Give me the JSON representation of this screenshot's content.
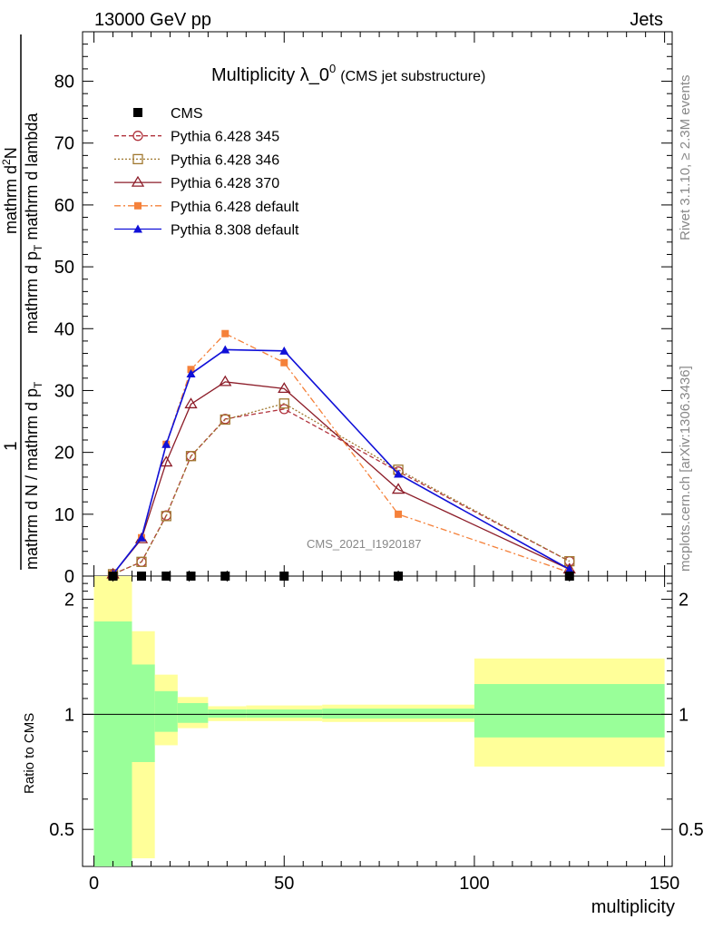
{
  "header": {
    "left": "13000 GeV pp",
    "right": "Jets"
  },
  "side_labels": {
    "rivet": "Rivet 3.1.10, ≥ 2.3M events",
    "mcplots": "mcplots.cern.ch [arXiv:1306.3436]"
  },
  "title": {
    "main": "Multiplicity λ_0",
    "sup": "0",
    "sub": "(CMS jet substructure)"
  },
  "watermark": "CMS_2021_I1920187",
  "y_label": {
    "one": "1",
    "denominator": "mathrm d N / mathrm d p",
    "denominator_sub": "T",
    "numerator_pre": "mathrm d",
    "numerator_sup": "2",
    "numerator_post": "N",
    "numerator_line2": "mathrm d p",
    "numerator_line2_sub": "T",
    "numerator_line2_post": " mathrm d lambda"
  },
  "ratio_label": "Ratio to CMS",
  "x_label": "multiplicity",
  "colors": {
    "cms": "#000000",
    "p345": "#b0323c",
    "p346": "#a07830",
    "p370": "#8c1c28",
    "p6def": "#f5813a",
    "p8def": "#1010d8",
    "band_inner": "#99ff99",
    "band_outer": "#ffff99"
  },
  "chart_data": [
    {
      "type": "line",
      "xlim": [
        -3,
        152
      ],
      "ylim": [
        0,
        88
      ],
      "yticks": [
        0,
        10,
        20,
        30,
        40,
        50,
        60,
        70,
        80
      ],
      "x_minor_step": 5,
      "y_minor_step": 2,
      "legend_placement": "top-left",
      "series": [
        {
          "name": "CMS",
          "key": "cms",
          "style": "cms",
          "x": [
            5,
            12.5,
            19,
            25.5,
            34.5,
            50,
            80,
            125
          ],
          "y": [
            0,
            0,
            0,
            0,
            0,
            0,
            0,
            0
          ]
        },
        {
          "name": "Pythia 6.428 345",
          "key": "p345",
          "style": "circle-dashed",
          "x": [
            5,
            12.5,
            19,
            25.5,
            34.5,
            50,
            80,
            125
          ],
          "y": [
            0.3,
            2.3,
            9.8,
            19.4,
            25.4,
            27.0,
            16.9,
            2.4
          ]
        },
        {
          "name": "Pythia 6.428 346",
          "key": "p346",
          "style": "square-dotted",
          "x": [
            5,
            12.5,
            19,
            25.5,
            34.5,
            50,
            80,
            125
          ],
          "y": [
            0.3,
            2.3,
            9.7,
            19.4,
            25.3,
            27.9,
            17.2,
            2.4
          ]
        },
        {
          "name": "Pythia 6.428 370",
          "key": "p370",
          "style": "triangle-open-solid",
          "x": [
            5,
            12.5,
            19,
            25.5,
            34.5,
            50,
            80,
            125
          ],
          "y": [
            0.3,
            6.0,
            18.4,
            27.8,
            31.4,
            30.3,
            14.0,
            1.1
          ]
        },
        {
          "name": "Pythia 6.428 default",
          "key": "p6def",
          "style": "square-filled-dashdot",
          "x": [
            5,
            12.5,
            19,
            25.5,
            34.5,
            50,
            80,
            125
          ],
          "y": [
            0.3,
            6.2,
            21.3,
            33.4,
            39.2,
            34.5,
            10.0,
            0.6
          ]
        },
        {
          "name": "Pythia 8.308 default",
          "key": "p8def",
          "style": "triangle-filled-solid",
          "x": [
            5,
            12.5,
            19,
            25.5,
            34.5,
            50,
            80,
            125
          ],
          "y": [
            0.3,
            6.2,
            21.3,
            32.7,
            36.6,
            36.4,
            16.5,
            1.1
          ]
        }
      ]
    },
    {
      "type": "area",
      "xlim": [
        -3,
        152
      ],
      "ylim": [
        0.4,
        2.3
      ],
      "yscale": "log",
      "yticks": [
        0.5,
        1,
        2
      ],
      "reference_line": 1,
      "bands": [
        {
          "x0": 0,
          "x1": 10,
          "inner": [
            0.4,
            1.75
          ],
          "outer": [
            0.4,
            2.3
          ]
        },
        {
          "x0": 10,
          "x1": 16,
          "inner": [
            0.75,
            1.35
          ],
          "outer": [
            0.42,
            1.65
          ]
        },
        {
          "x0": 16,
          "x1": 22,
          "inner": [
            0.9,
            1.15
          ],
          "outer": [
            0.83,
            1.27
          ]
        },
        {
          "x0": 22,
          "x1": 30,
          "inner": [
            0.95,
            1.07
          ],
          "outer": [
            0.92,
            1.11
          ]
        },
        {
          "x0": 30,
          "x1": 40,
          "inner": [
            0.98,
            1.03
          ],
          "outer": [
            0.96,
            1.05
          ]
        },
        {
          "x0": 40,
          "x1": 60,
          "inner": [
            0.98,
            1.03
          ],
          "outer": [
            0.96,
            1.055
          ]
        },
        {
          "x0": 60,
          "x1": 100,
          "inner": [
            0.975,
            1.035
          ],
          "outer": [
            0.955,
            1.06
          ]
        },
        {
          "x0": 100,
          "x1": 150,
          "inner": [
            0.87,
            1.2
          ],
          "outer": [
            0.73,
            1.4
          ]
        }
      ]
    }
  ],
  "x_ticks": [
    0,
    50,
    100,
    150
  ]
}
